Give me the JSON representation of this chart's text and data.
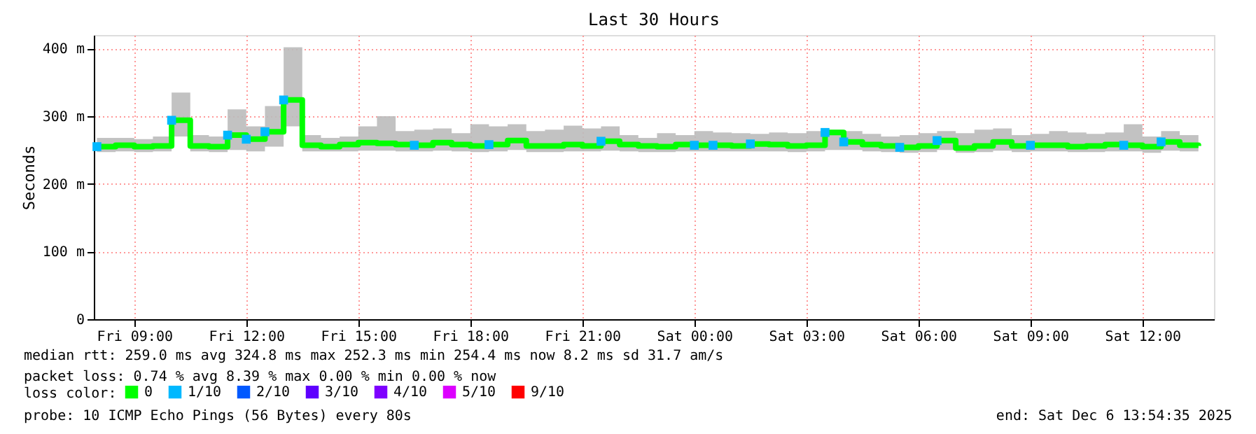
{
  "chart_data": {
    "type": "step",
    "title": "Last 30 Hours",
    "ylabel": "Seconds",
    "legend_title": "loss color:",
    "x": [
      "2025-12-05T08:00",
      "2025-12-05T08:30",
      "2025-12-05T09:00",
      "2025-12-05T09:30",
      "2025-12-05T10:00",
      "2025-12-05T10:30",
      "2025-12-05T11:00",
      "2025-12-05T11:30",
      "2025-12-05T12:00",
      "2025-12-05T12:30",
      "2025-12-05T13:00",
      "2025-12-05T13:30",
      "2025-12-05T14:00",
      "2025-12-05T14:30",
      "2025-12-05T15:00",
      "2025-12-05T15:30",
      "2025-12-05T16:00",
      "2025-12-05T16:30",
      "2025-12-05T17:00",
      "2025-12-05T17:30",
      "2025-12-05T18:00",
      "2025-12-05T18:30",
      "2025-12-05T19:00",
      "2025-12-05T19:30",
      "2025-12-05T20:00",
      "2025-12-05T20:30",
      "2025-12-05T21:00",
      "2025-12-05T21:30",
      "2025-12-05T22:00",
      "2025-12-05T22:30",
      "2025-12-05T23:00",
      "2025-12-05T23:30",
      "2025-12-06T00:00",
      "2025-12-06T00:30",
      "2025-12-06T01:00",
      "2025-12-06T01:30",
      "2025-12-06T02:00",
      "2025-12-06T02:30",
      "2025-12-06T03:00",
      "2025-12-06T03:30",
      "2025-12-06T04:00",
      "2025-12-06T04:30",
      "2025-12-06T05:00",
      "2025-12-06T05:30",
      "2025-12-06T06:00",
      "2025-12-06T06:30",
      "2025-12-06T07:00",
      "2025-12-06T07:30",
      "2025-12-06T08:00",
      "2025-12-06T08:30",
      "2025-12-06T09:00",
      "2025-12-06T09:30",
      "2025-12-06T10:00",
      "2025-12-06T10:30",
      "2025-12-06T11:00",
      "2025-12-06T11:30",
      "2025-12-06T12:00",
      "2025-12-06T12:30",
      "2025-12-06T13:00",
      "2025-12-06T13:30"
    ],
    "series": [
      {
        "name": "0",
        "color": "#00ff00",
        "values": [
          255,
          257,
          255,
          256,
          294,
          256,
          255,
          272,
          266,
          277,
          324,
          257,
          255,
          258,
          261,
          260,
          258,
          257,
          261,
          258,
          256,
          258,
          264,
          256,
          256,
          258,
          256,
          263,
          258,
          256,
          255,
          258,
          257,
          257,
          256,
          259,
          258,
          256,
          257,
          276,
          262,
          258,
          256,
          254,
          256,
          264,
          253,
          256,
          262,
          256,
          257,
          257,
          255,
          256,
          258,
          257,
          255,
          262,
          257,
          256
        ],
        "lower": [
          247,
          248,
          247,
          248,
          270,
          248,
          247,
          250,
          248,
          255,
          285,
          248,
          248,
          248,
          249,
          249,
          248,
          248,
          249,
          248,
          247,
          248,
          250,
          247,
          247,
          248,
          248,
          249,
          248,
          247,
          247,
          248,
          248,
          248,
          248,
          248,
          248,
          247,
          248,
          250,
          250,
          248,
          247,
          246,
          247,
          250,
          246,
          247,
          249,
          247,
          248,
          248,
          247,
          247,
          248,
          248,
          246,
          249,
          248,
          248
        ],
        "upper": [
          268,
          268,
          266,
          270,
          335,
          272,
          270,
          310,
          285,
          315,
          402,
          272,
          268,
          270,
          285,
          300,
          278,
          280,
          282,
          275,
          288,
          285,
          288,
          278,
          280,
          286,
          282,
          285,
          272,
          268,
          275,
          272,
          278,
          276,
          275,
          274,
          276,
          275,
          278,
          280,
          278,
          274,
          270,
          272,
          275,
          278,
          275,
          280,
          282,
          272,
          274,
          278,
          276,
          274,
          276,
          288,
          270,
          278,
          272,
          270
        ]
      },
      {
        "name": "1/10",
        "type": "scatter",
        "marker": "square",
        "color": "#00b8ff",
        "values": [
          255,
          null,
          null,
          null,
          294,
          null,
          null,
          272,
          266,
          277,
          324,
          null,
          null,
          null,
          null,
          null,
          null,
          257,
          null,
          null,
          null,
          258,
          null,
          null,
          null,
          null,
          null,
          263,
          null,
          null,
          null,
          null,
          257,
          257,
          null,
          259,
          null,
          null,
          null,
          276,
          262,
          null,
          null,
          254,
          null,
          264,
          null,
          null,
          null,
          null,
          257,
          null,
          null,
          null,
          null,
          257,
          null,
          262,
          null,
          null
        ]
      },
      {
        "name": "2/10",
        "type": "scatter",
        "marker": "square",
        "color": "#0059ff",
        "values": [
          null,
          null,
          null,
          null,
          null,
          null,
          null,
          null,
          null,
          null,
          null,
          null,
          null,
          null,
          null,
          null,
          null,
          null,
          null,
          null,
          null,
          null,
          null,
          null,
          null,
          null,
          null,
          null,
          null,
          null,
          null,
          null,
          null,
          null,
          null,
          null,
          null,
          null,
          null,
          null,
          null,
          null,
          null,
          null,
          null,
          null,
          null,
          null,
          null,
          null,
          null,
          null,
          null,
          null,
          null,
          null,
          null,
          null,
          null,
          null
        ]
      },
      {
        "name": "3/10",
        "type": "scatter",
        "marker": "square",
        "color": "#5e00ff",
        "values": [
          null,
          null,
          null,
          null,
          null,
          null,
          null,
          null,
          null,
          null,
          null,
          null,
          null,
          null,
          null,
          null,
          null,
          null,
          null,
          null,
          null,
          null,
          null,
          null,
          null,
          null,
          null,
          null,
          null,
          null,
          null,
          null,
          null,
          null,
          null,
          null,
          null,
          null,
          null,
          null,
          null,
          null,
          null,
          null,
          null,
          null,
          null,
          null,
          null,
          null,
          null,
          null,
          null,
          null,
          null,
          null,
          null,
          null,
          null,
          null
        ]
      },
      {
        "name": "4/10",
        "type": "scatter",
        "marker": "square",
        "color": "#7e00ff",
        "values": [
          null,
          null,
          null,
          null,
          null,
          null,
          null,
          null,
          null,
          null,
          null,
          null,
          null,
          null,
          null,
          null,
          null,
          null,
          null,
          null,
          null,
          null,
          null,
          null,
          null,
          null,
          null,
          null,
          null,
          null,
          null,
          null,
          null,
          null,
          null,
          null,
          null,
          null,
          null,
          null,
          null,
          null,
          null,
          null,
          null,
          null,
          null,
          null,
          null,
          null,
          null,
          null,
          null,
          null,
          null,
          null,
          null,
          null,
          null,
          null
        ]
      },
      {
        "name": "5/10",
        "type": "scatter",
        "marker": "square",
        "color": "#dd00ff",
        "values": [
          null,
          null,
          null,
          null,
          null,
          null,
          null,
          null,
          null,
          null,
          null,
          null,
          null,
          null,
          null,
          null,
          null,
          null,
          null,
          null,
          null,
          null,
          null,
          null,
          null,
          null,
          null,
          null,
          null,
          null,
          null,
          null,
          null,
          null,
          null,
          null,
          null,
          null,
          null,
          null,
          null,
          null,
          null,
          null,
          null,
          null,
          null,
          null,
          null,
          null,
          null,
          null,
          null,
          null,
          null,
          null,
          null,
          null,
          null,
          null
        ]
      },
      {
        "name": "9/10",
        "type": "scatter",
        "marker": "square",
        "color": "#ff0000",
        "values": [
          null,
          null,
          null,
          null,
          null,
          null,
          null,
          null,
          null,
          null,
          null,
          null,
          null,
          null,
          null,
          null,
          null,
          null,
          null,
          null,
          null,
          null,
          null,
          null,
          null,
          null,
          null,
          null,
          null,
          null,
          null,
          null,
          null,
          null,
          null,
          null,
          null,
          null,
          null,
          null,
          null,
          null,
          null,
          null,
          null,
          null,
          null,
          null,
          null,
          null,
          null,
          null,
          null,
          null,
          null,
          null,
          null,
          null,
          null,
          null
        ]
      }
    ],
    "xlim": [
      "2025-12-05T07:55",
      "2025-12-06T13:55"
    ],
    "xticks": [
      {
        "value": "2025-12-05T09:00",
        "label": "Fri 09:00"
      },
      {
        "value": "2025-12-05T12:00",
        "label": "Fri 12:00"
      },
      {
        "value": "2025-12-05T15:00",
        "label": "Fri 15:00"
      },
      {
        "value": "2025-12-05T18:00",
        "label": "Fri 18:00"
      },
      {
        "value": "2025-12-05T21:00",
        "label": "Fri 21:00"
      },
      {
        "value": "2025-12-06T00:00",
        "label": "Sat 00:00"
      },
      {
        "value": "2025-12-06T03:00",
        "label": "Sat 03:00"
      },
      {
        "value": "2025-12-06T06:00",
        "label": "Sat 06:00"
      },
      {
        "value": "2025-12-06T09:00",
        "label": "Sat 09:00"
      },
      {
        "value": "2025-12-06T12:00",
        "label": "Sat 12:00"
      }
    ],
    "ylim": [
      0,
      420
    ],
    "yticks": [
      0,
      {
        "value": 100,
        "label": "100 m"
      },
      {
        "value": 200,
        "label": "200 m"
      },
      {
        "value": 300,
        "label": "300 m"
      },
      {
        "value": 400,
        "label": "400 m"
      }
    ],
    "grid": true,
    "legend": "bottom",
    "annotations": [
      "median rtt:  259.0 ms avg  324.8 ms max  252.3 ms min  254.4 ms now  8.2 ms sd  31.7   am/s",
      "packet loss: 0.74 % avg  8.39 % max  0.00 % min  0.00 % now",
      "probe:       10 ICMP Echo Pings (56 Bytes) every 80s",
      "end: Sat Dec  6 13:54:35 2025"
    ]
  }
}
